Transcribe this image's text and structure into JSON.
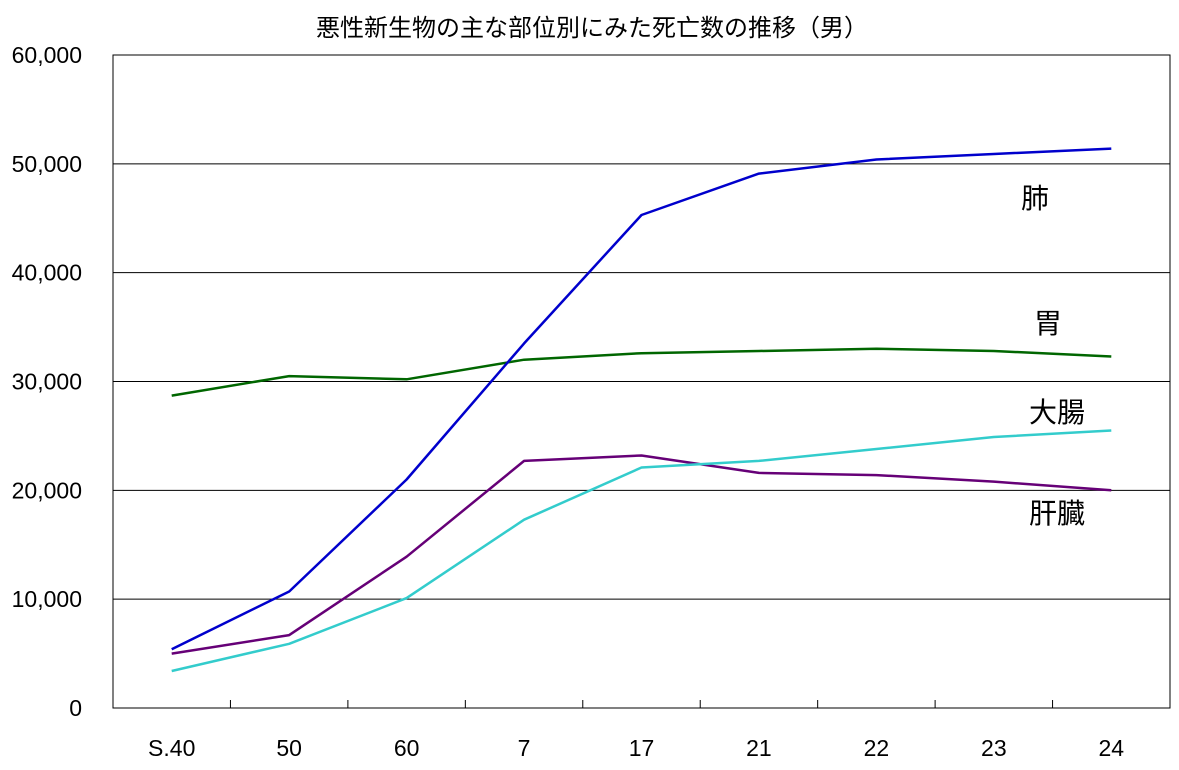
{
  "chart_data": {
    "type": "line",
    "title": "悪性新生物の主な部位別にみた死亡数の推移（男）",
    "xlabel": "",
    "ylabel": "",
    "categories": [
      "S.40",
      "50",
      "60",
      "7",
      "17",
      "21",
      "22",
      "23",
      "24"
    ],
    "ylim": [
      0,
      60000
    ],
    "yticks": [
      0,
      10000,
      20000,
      30000,
      40000,
      50000,
      60000
    ],
    "ytick_labels": [
      "0",
      "10,000",
      "20,000",
      "30,000",
      "40,000",
      "50,000",
      "60,000"
    ],
    "grid": true,
    "legend": "inline labels at right",
    "series": [
      {
        "name": "肺",
        "color": "#0000cc",
        "values": [
          5400,
          10700,
          21000,
          33500,
          45300,
          49100,
          50400,
          50900,
          51400
        ]
      },
      {
        "name": "胃",
        "color": "#006600",
        "values": [
          28700,
          30500,
          30200,
          32000,
          32600,
          32800,
          33000,
          32800,
          32300
        ]
      },
      {
        "name": "大腸",
        "color": "#33cccc",
        "values": [
          3400,
          5900,
          10100,
          17300,
          22100,
          22700,
          23800,
          24900,
          25500
        ]
      },
      {
        "name": "肝臓",
        "color": "#660077",
        "values": [
          5000,
          6700,
          13900,
          22700,
          23200,
          21600,
          21400,
          20800,
          20000
        ]
      }
    ]
  }
}
